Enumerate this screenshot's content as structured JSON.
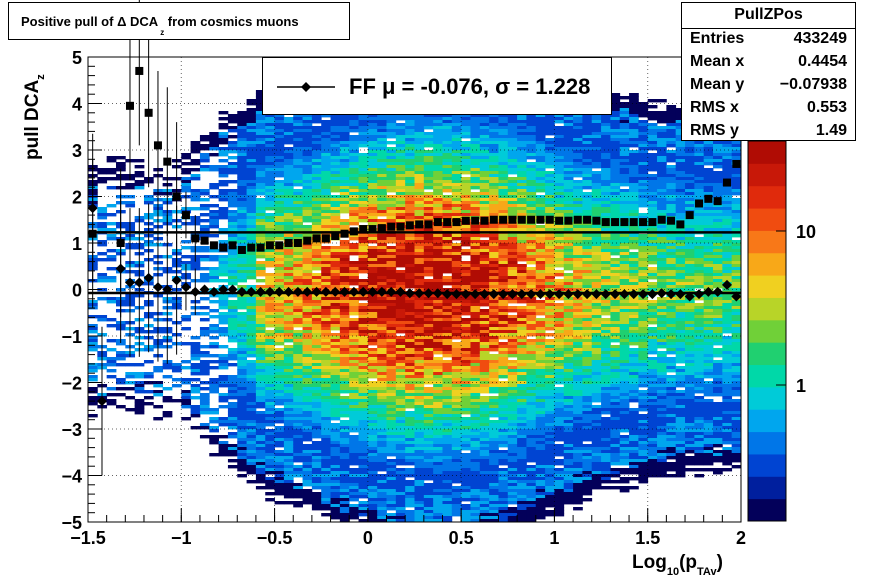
{
  "title": "Positive pull of Δ DCA",
  "title_sub": "z",
  "title_tail": " from cosmics muons",
  "stats": {
    "name": "PullZPos",
    "rows": [
      {
        "key": "Entries",
        "value": "433249"
      },
      {
        "key": "Mean x",
        "value": "0.4454"
      },
      {
        "key": "Mean y",
        "value": "−0.07938"
      },
      {
        "key": "RMS x",
        "value": "0.553"
      },
      {
        "key": "RMS y",
        "value": "1.49"
      }
    ]
  },
  "legend": {
    "label": "FF μ = -0.076, σ =   1.228"
  },
  "chart_data": {
    "type": "heatmap",
    "xlabel_main": "Log",
    "xlabel_sub1": "10",
    "xlabel_mid": "(p",
    "xlabel_sub2": "TAv",
    "xlabel_end": ")",
    "ylabel_main": "pull DCA",
    "ylabel_sub": "z",
    "xlim": [
      -1.5,
      2
    ],
    "ylim": [
      -5,
      5
    ],
    "x_ticks": [
      "−1.5",
      "−1",
      "−0.5",
      "0",
      "0.5",
      "1",
      "1.5",
      "2"
    ],
    "y_ticks": [
      "−5",
      "−4",
      "−3",
      "−2",
      "−1",
      "0",
      "1",
      "2",
      "3",
      "4",
      "5"
    ],
    "color_scale": "log",
    "z_ticks": [
      "1",
      "10"
    ],
    "grid": true,
    "sigma_fit": 1.228,
    "mean_fit": -0.076,
    "series": [
      {
        "marker": "square",
        "x": [
          -1.475,
          -1.325,
          -1.275,
          -1.225,
          -1.175,
          -1.125,
          -1.075,
          -1.025,
          -0.975,
          -0.925,
          -0.875,
          -0.825,
          -0.775,
          -0.725,
          -0.675,
          -0.625,
          -0.575,
          -0.525,
          -0.475,
          -0.425,
          -0.375,
          -0.325,
          -0.275,
          -0.225,
          -0.175,
          -0.125,
          -0.075,
          -0.025,
          0.025,
          0.075,
          0.125,
          0.175,
          0.225,
          0.275,
          0.325,
          0.375,
          0.425,
          0.475,
          0.525,
          0.575,
          0.625,
          0.675,
          0.725,
          0.775,
          0.825,
          0.875,
          0.925,
          0.975,
          1.025,
          1.075,
          1.125,
          1.175,
          1.225,
          1.275,
          1.325,
          1.375,
          1.425,
          1.475,
          1.525,
          1.575,
          1.625,
          1.675,
          1.725,
          1.775,
          1.825,
          1.875,
          1.925,
          1.975
        ],
        "y": [
          1.2,
          1.0,
          3.95,
          4.7,
          3.8,
          3.1,
          2.75,
          2.0,
          1.6,
          1.1,
          1.05,
          0.95,
          0.9,
          0.95,
          0.85,
          0.9,
          0.9,
          0.95,
          0.95,
          1.0,
          1.0,
          1.05,
          1.1,
          1.1,
          1.15,
          1.2,
          1.25,
          1.3,
          1.3,
          1.32,
          1.35,
          1.35,
          1.38,
          1.4,
          1.4,
          1.45,
          1.45,
          1.45,
          1.48,
          1.48,
          1.48,
          1.5,
          1.5,
          1.5,
          1.5,
          1.5,
          1.5,
          1.5,
          1.48,
          1.48,
          1.5,
          1.5,
          1.48,
          1.45,
          1.45,
          1.45,
          1.45,
          1.45,
          1.45,
          1.5,
          1.48,
          1.4,
          1.6,
          1.85,
          1.95,
          1.9,
          2.3,
          2.7
        ]
      },
      {
        "marker": "diamond",
        "x": [
          -1.475,
          -1.425,
          -1.325,
          -1.275,
          -1.225,
          -1.175,
          -1.125,
          -1.075,
          -1.025,
          -0.975,
          -0.925,
          -0.875,
          -0.825,
          -0.775,
          -0.725,
          -0.675,
          -0.625,
          -0.575,
          -0.525,
          -0.475,
          -0.425,
          -0.375,
          -0.325,
          -0.275,
          -0.225,
          -0.175,
          -0.125,
          -0.075,
          -0.025,
          0.025,
          0.075,
          0.125,
          0.175,
          0.225,
          0.275,
          0.325,
          0.375,
          0.425,
          0.475,
          0.525,
          0.575,
          0.625,
          0.675,
          0.725,
          0.775,
          0.825,
          0.875,
          0.925,
          0.975,
          1.025,
          1.075,
          1.125,
          1.175,
          1.225,
          1.275,
          1.325,
          1.375,
          1.425,
          1.475,
          1.525,
          1.575,
          1.625,
          1.675,
          1.725,
          1.775,
          1.825,
          1.875,
          1.925,
          1.975
        ],
        "y": [
          1.75,
          -2.4,
          0.45,
          0.15,
          0.15,
          0.25,
          0.05,
          0.0,
          0.2,
          0.05,
          -0.05,
          0.0,
          -0.05,
          0.0,
          0.0,
          -0.05,
          -0.05,
          -0.05,
          -0.05,
          -0.05,
          -0.05,
          -0.05,
          -0.05,
          -0.05,
          -0.05,
          -0.05,
          -0.05,
          -0.05,
          -0.05,
          -0.05,
          -0.05,
          -0.05,
          -0.05,
          -0.08,
          -0.08,
          -0.08,
          -0.08,
          -0.1,
          -0.1,
          -0.1,
          -0.1,
          -0.1,
          -0.1,
          -0.1,
          -0.1,
          -0.1,
          -0.1,
          -0.1,
          -0.1,
          -0.1,
          -0.1,
          -0.1,
          -0.1,
          -0.1,
          -0.1,
          -0.1,
          -0.1,
          -0.1,
          -0.1,
          -0.1,
          -0.08,
          -0.1,
          -0.1,
          -0.15,
          -0.1,
          -0.05,
          -0.05,
          0.1,
          -0.15
        ]
      }
    ]
  },
  "colors": {
    "palette": [
      "#03005a",
      "#001f9e",
      "#0044d2",
      "#0076e8",
      "#00a6ee",
      "#00cbd8",
      "#00d8a8",
      "#20d070",
      "#70d038",
      "#b8d428",
      "#f0d020",
      "#f8a818",
      "#f87818",
      "#f04c10",
      "#e02a0c",
      "#c81808",
      "#b00c04"
    ],
    "marker": "#000000"
  }
}
